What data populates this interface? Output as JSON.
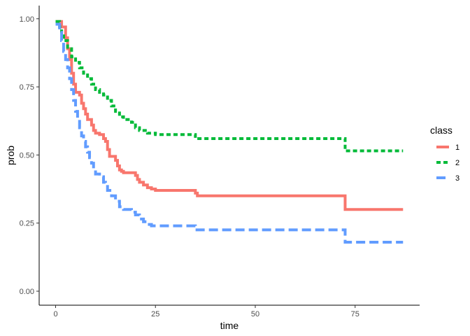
{
  "chart_data": {
    "type": "line",
    "subtype": "step",
    "xlabel": "time",
    "ylabel": "prob",
    "xlim": [
      -2.5,
      91
    ],
    "ylim": [
      -0.05,
      1.05
    ],
    "x_ticks": [
      0,
      25,
      50,
      75
    ],
    "y_ticks": [
      0.0,
      0.25,
      0.5,
      0.75,
      1.0
    ],
    "x_tick_labels": [
      "0",
      "25",
      "50",
      "75"
    ],
    "y_tick_labels": [
      "0.00",
      "0.25",
      "0.50",
      "0.75",
      "1.00"
    ],
    "grid": false,
    "legend": {
      "title": "class",
      "position": "right"
    },
    "series": [
      {
        "name": "1",
        "color": "#F8766D",
        "dash": "solid",
        "points": [
          [
            0,
            0.99
          ],
          [
            1.5,
            0.97
          ],
          [
            2.5,
            0.93
          ],
          [
            3,
            0.89
          ],
          [
            3.5,
            0.85
          ],
          [
            4,
            0.8
          ],
          [
            4.5,
            0.76
          ],
          [
            5,
            0.73
          ],
          [
            6,
            0.72
          ],
          [
            6.5,
            0.69
          ],
          [
            7,
            0.67
          ],
          [
            7.5,
            0.65
          ],
          [
            8,
            0.63
          ],
          [
            9,
            0.61
          ],
          [
            9.5,
            0.59
          ],
          [
            10,
            0.58
          ],
          [
            11,
            0.575
          ],
          [
            12,
            0.56
          ],
          [
            12.5,
            0.55
          ],
          [
            13,
            0.52
          ],
          [
            13.5,
            0.495
          ],
          [
            15,
            0.48
          ],
          [
            15.5,
            0.46
          ],
          [
            16,
            0.445
          ],
          [
            16.5,
            0.44
          ],
          [
            17,
            0.435
          ],
          [
            20,
            0.425
          ],
          [
            20.5,
            0.41
          ],
          [
            21,
            0.4
          ],
          [
            22,
            0.39
          ],
          [
            23,
            0.38
          ],
          [
            24,
            0.375
          ],
          [
            25,
            0.37
          ],
          [
            35,
            0.36
          ],
          [
            35.5,
            0.35
          ],
          [
            72.5,
            0.3
          ],
          [
            87,
            0.3
          ]
        ]
      },
      {
        "name": "2",
        "color": "#00BA38",
        "dash": "dotted",
        "points": [
          [
            0,
            0.99
          ],
          [
            1,
            0.97
          ],
          [
            1.5,
            0.95
          ],
          [
            2,
            0.92
          ],
          [
            3,
            0.89
          ],
          [
            4,
            0.86
          ],
          [
            5,
            0.84
          ],
          [
            6,
            0.82
          ],
          [
            7,
            0.8
          ],
          [
            8,
            0.78
          ],
          [
            9,
            0.76
          ],
          [
            10,
            0.74
          ],
          [
            11,
            0.73
          ],
          [
            12,
            0.72
          ],
          [
            13,
            0.7
          ],
          [
            14,
            0.68
          ],
          [
            15,
            0.66
          ],
          [
            16,
            0.64
          ],
          [
            17,
            0.63
          ],
          [
            19,
            0.62
          ],
          [
            20,
            0.6
          ],
          [
            21,
            0.59
          ],
          [
            23,
            0.58
          ],
          [
            25,
            0.575
          ],
          [
            35,
            0.56
          ],
          [
            72.5,
            0.515
          ],
          [
            87,
            0.515
          ]
        ]
      },
      {
        "name": "3",
        "color": "#619CFF",
        "dash": "dashed",
        "points": [
          [
            0,
            0.98
          ],
          [
            1,
            0.95
          ],
          [
            1.5,
            0.92
          ],
          [
            2,
            0.88
          ],
          [
            2.5,
            0.85
          ],
          [
            3,
            0.82
          ],
          [
            3.5,
            0.78
          ],
          [
            4,
            0.74
          ],
          [
            4.5,
            0.7
          ],
          [
            5,
            0.66
          ],
          [
            5.5,
            0.63
          ],
          [
            6,
            0.6
          ],
          [
            6.5,
            0.57
          ],
          [
            7,
            0.55
          ],
          [
            7.5,
            0.53
          ],
          [
            8,
            0.51
          ],
          [
            8.5,
            0.49
          ],
          [
            9,
            0.47
          ],
          [
            9.5,
            0.45
          ],
          [
            10,
            0.43
          ],
          [
            11,
            0.42
          ],
          [
            12,
            0.4
          ],
          [
            12.5,
            0.39
          ],
          [
            13,
            0.37
          ],
          [
            14,
            0.35
          ],
          [
            15,
            0.33
          ],
          [
            16,
            0.31
          ],
          [
            17,
            0.3
          ],
          [
            19,
            0.29
          ],
          [
            20,
            0.28
          ],
          [
            21,
            0.265
          ],
          [
            22,
            0.255
          ],
          [
            23,
            0.245
          ],
          [
            24,
            0.24
          ],
          [
            35,
            0.225
          ],
          [
            72.5,
            0.18
          ],
          [
            87,
            0.18
          ]
        ]
      }
    ]
  }
}
